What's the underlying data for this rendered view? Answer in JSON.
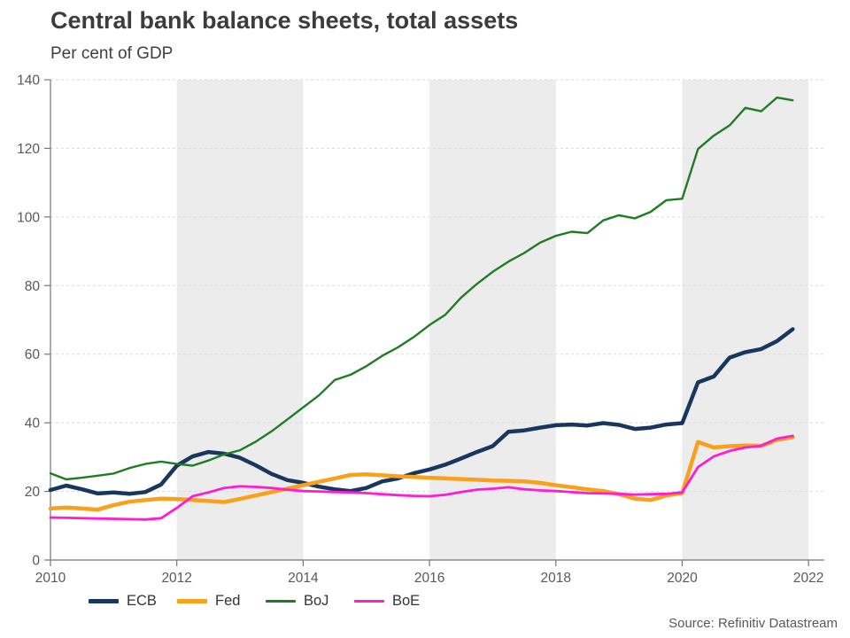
{
  "chart_data": {
    "type": "line",
    "title": "Central bank balance sheets, total assets",
    "subtitle": "Per cent of GDP",
    "source_note": "Source: Refinitiv Datastream",
    "xlabel": "",
    "ylabel": "Per cent of GDP",
    "x_range": [
      2010,
      2022.25
    ],
    "ylim": [
      0,
      140
    ],
    "y_ticks": [
      0,
      20,
      40,
      60,
      80,
      100,
      120,
      140
    ],
    "x_ticks": [
      2010,
      2012,
      2014,
      2016,
      2018,
      2020,
      2022
    ],
    "shaded_bands": [
      [
        2012,
        2014
      ],
      [
        2016,
        2018
      ],
      [
        2020,
        2022
      ]
    ],
    "grid": "horizontal-dashed",
    "legend_position": "bottom-left",
    "style": {
      "band_fill": "#ececec",
      "grid_color": "#d9d9d9",
      "axis_color": "#767676",
      "tick_text_color": "#595959"
    },
    "x": [
      2010,
      2010.25,
      2010.5,
      2010.75,
      2011,
      2011.25,
      2011.5,
      2011.75,
      2012,
      2012.25,
      2012.5,
      2012.75,
      2013,
      2013.25,
      2013.5,
      2013.75,
      2014,
      2014.25,
      2014.5,
      2014.75,
      2015,
      2015.25,
      2015.5,
      2015.75,
      2016,
      2016.25,
      2016.5,
      2016.75,
      2017,
      2017.25,
      2017.5,
      2017.75,
      2018,
      2018.25,
      2018.5,
      2018.75,
      2019,
      2019.25,
      2019.5,
      2019.75,
      2020,
      2020.25,
      2020.5,
      2020.75,
      2021,
      2021.25,
      2021.5,
      2021.75
    ],
    "series": [
      {
        "name": "ECB",
        "color": "#17375e",
        "width": 4.5,
        "values": [
          20.4,
          21.7,
          20.6,
          19.4,
          19.7,
          19.3,
          19.8,
          22,
          27.5,
          30.2,
          31.5,
          31,
          29.8,
          27.6,
          25.1,
          23.3,
          22.5,
          21.4,
          20.6,
          20.1,
          21,
          22.9,
          23.8,
          25.3,
          26.4,
          27.8,
          29.6,
          31.5,
          33.2,
          37.4,
          37.8,
          38.6,
          39.3,
          39.5,
          39.2,
          39.9,
          39.4,
          38.2,
          38.6,
          39.5,
          39.9,
          51.8,
          53.5,
          59,
          60.6,
          61.5,
          63.8,
          67.3
        ]
      },
      {
        "name": "Fed",
        "color": "#f9a11b",
        "width": 4.5,
        "values": [
          15,
          15.3,
          15,
          14.7,
          16,
          17,
          17.5,
          17.9,
          17.8,
          17.5,
          17.2,
          16.9,
          17.8,
          18.8,
          19.8,
          20.8,
          21.8,
          22.8,
          23.8,
          24.8,
          25,
          24.7,
          24.4,
          24.2,
          24,
          23.8,
          23.6,
          23.4,
          23.2,
          23.1,
          22.9,
          22.5,
          21.8,
          21.2,
          20.6,
          20.1,
          19.2,
          17.9,
          17.5,
          18.8,
          19.5,
          34.4,
          32.8,
          33.2,
          33.4,
          33.3,
          35,
          35.8
        ]
      },
      {
        "name": "BoJ",
        "color": "#1e7d22",
        "width": 2.4,
        "values": [
          25.3,
          23.5,
          24,
          24.6,
          25.2,
          26.8,
          28,
          28.7,
          28,
          27.5,
          29,
          30.8,
          32,
          34.5,
          37.5,
          41,
          44.5,
          48,
          52.5,
          54,
          56.5,
          59.5,
          62,
          65,
          68.5,
          71.5,
          76.5,
          80.5,
          84,
          87,
          89.5,
          92.5,
          94.5,
          95.7,
          95.3,
          99,
          100.5,
          99.6,
          101.5,
          104.9,
          105.3,
          119.8,
          123.7,
          126.7,
          131.8,
          130.8,
          134.8,
          134
        ]
      },
      {
        "name": "BoE",
        "color": "#ff1cd2",
        "width": 2.8,
        "values": [
          12.4,
          12.3,
          12.2,
          12.1,
          12,
          11.9,
          11.8,
          12.2,
          15.2,
          18.6,
          19.7,
          21,
          21.5,
          21.3,
          21,
          20.5,
          20.1,
          20,
          19.8,
          19.7,
          19.5,
          19.2,
          18.9,
          18.7,
          18.6,
          19,
          19.8,
          20.5,
          20.8,
          21.2,
          20.6,
          20.3,
          20.1,
          19.8,
          19.5,
          19.4,
          19.3,
          19.1,
          19.2,
          19.3,
          19.7,
          27.1,
          30.2,
          31.8,
          32.8,
          33.3,
          35.4,
          36.2
        ]
      }
    ]
  }
}
